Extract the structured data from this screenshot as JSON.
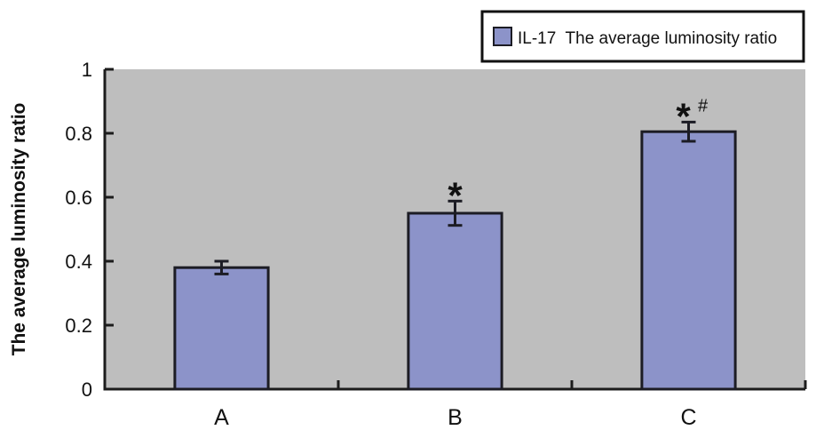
{
  "chart_data": {
    "type": "bar",
    "title": "",
    "xlabel": "",
    "ylabel": "The average luminosity ratio",
    "categories": [
      "A",
      "B",
      "C"
    ],
    "series": [
      {
        "name": "IL-17  The average luminosity ratio",
        "values": [
          0.38,
          0.55,
          0.805
        ],
        "error": [
          0.02,
          0.038,
          0.03
        ]
      }
    ],
    "annotations": [
      {
        "category": "B",
        "text": "*",
        "superscript": ""
      },
      {
        "category": "C",
        "text": "*",
        "superscript": "#"
      }
    ],
    "ylim": [
      0,
      1
    ],
    "yticks": [
      "0",
      "0.2",
      "0.4",
      "0.6",
      "0.8",
      "1"
    ],
    "ytick_values": [
      0,
      0.2,
      0.4,
      0.6,
      0.8,
      1
    ],
    "grid": false,
    "legend": "top-right",
    "colors": {
      "plot_background": "#bebebe",
      "bar_fill": "#8c93c9",
      "bar_stroke": "#1c1c24",
      "axis": "#1c1c1c",
      "text": "#111111"
    }
  }
}
